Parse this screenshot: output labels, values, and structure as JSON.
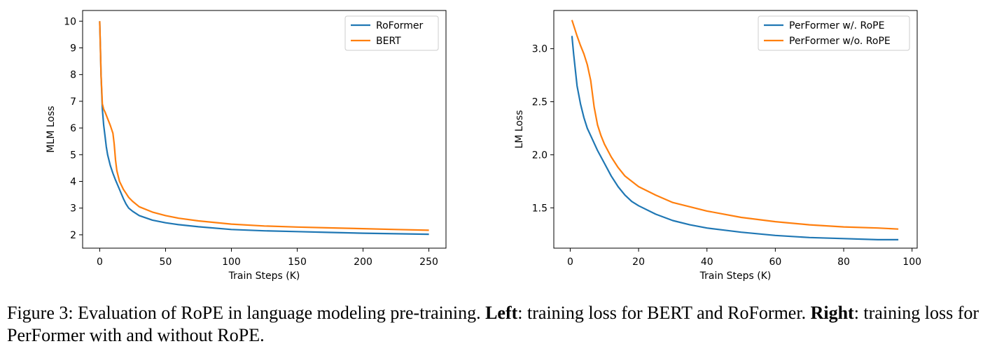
{
  "chart_data": [
    {
      "type": "line",
      "title": "",
      "xlabel": "Train Steps (K)",
      "ylabel": "MLM Loss",
      "xlim": [
        -13,
        263
      ],
      "ylim": [
        1.5,
        10.4
      ],
      "xticks": [
        0,
        50,
        100,
        150,
        200,
        250
      ],
      "yticks": [
        2,
        3,
        4,
        5,
        6,
        7,
        8,
        9,
        10
      ],
      "xtick_labels": [
        "0",
        "50",
        "100",
        "150",
        "200",
        "250"
      ],
      "ytick_labels": [
        "2",
        "3",
        "4",
        "5",
        "6",
        "7",
        "8",
        "9",
        "10"
      ],
      "legend_position": "top-right",
      "series": [
        {
          "name": "RoFormer",
          "color": "#1f77b4",
          "x": [
            0,
            0.5,
            1,
            2,
            3,
            4,
            5,
            6,
            8,
            10,
            12,
            15,
            18,
            20,
            22,
            25,
            30,
            40,
            50,
            60,
            75,
            100,
            125,
            150,
            175,
            200,
            225,
            250
          ],
          "y": [
            10.0,
            9.0,
            8.0,
            6.7,
            6.1,
            5.7,
            5.3,
            5.0,
            4.6,
            4.3,
            4.05,
            3.7,
            3.35,
            3.15,
            3.0,
            2.88,
            2.72,
            2.55,
            2.45,
            2.38,
            2.3,
            2.2,
            2.15,
            2.12,
            2.09,
            2.06,
            2.04,
            2.02
          ]
        },
        {
          "name": "BERT",
          "color": "#ff7f0e",
          "x": [
            0,
            0.5,
            1,
            2,
            3,
            4,
            6,
            8,
            10,
            11,
            12,
            13,
            15,
            18,
            20,
            22,
            25,
            30,
            40,
            50,
            60,
            75,
            100,
            125,
            150,
            175,
            200,
            225,
            250
          ],
          "y": [
            10.0,
            9.0,
            8.0,
            6.9,
            6.7,
            6.6,
            6.35,
            6.1,
            5.8,
            5.4,
            4.8,
            4.4,
            4.0,
            3.7,
            3.55,
            3.4,
            3.25,
            3.05,
            2.85,
            2.72,
            2.62,
            2.52,
            2.4,
            2.33,
            2.29,
            2.26,
            2.23,
            2.2,
            2.17
          ]
        }
      ]
    },
    {
      "type": "line",
      "title": "",
      "xlabel": "Train Steps (K)",
      "ylabel": "LM Loss",
      "xlim": [
        -4.8,
        101.5
      ],
      "ylim": [
        1.12,
        3.36
      ],
      "xticks": [
        0,
        20,
        40,
        60,
        80,
        100
      ],
      "yticks": [
        1.5,
        2.0,
        2.5,
        3.0
      ],
      "xtick_labels": [
        "0",
        "20",
        "40",
        "60",
        "80",
        "100"
      ],
      "ytick_labels": [
        "1.5",
        "2.0",
        "2.5",
        "3.0"
      ],
      "legend_position": "top-right",
      "series": [
        {
          "name": "PerFormer w/. RoPE",
          "color": "#1f77b4",
          "x": [
            0.5,
            1,
            2,
            3,
            4,
            5,
            6,
            8,
            10,
            12,
            14,
            16,
            18,
            20,
            25,
            30,
            35,
            40,
            45,
            50,
            60,
            70,
            80,
            90,
            96
          ],
          "y": [
            3.12,
            2.95,
            2.65,
            2.48,
            2.35,
            2.25,
            2.18,
            2.04,
            1.92,
            1.8,
            1.7,
            1.62,
            1.56,
            1.52,
            1.44,
            1.38,
            1.34,
            1.31,
            1.29,
            1.27,
            1.24,
            1.22,
            1.21,
            1.2,
            1.2
          ]
        },
        {
          "name": "PerFormer w/o. RoPE",
          "color": "#ff7f0e",
          "x": [
            0.5,
            1,
            2,
            3,
            4,
            5,
            6,
            7,
            8,
            9,
            10,
            12,
            14,
            16,
            18,
            20,
            25,
            30,
            35,
            40,
            45,
            50,
            60,
            70,
            80,
            90,
            96
          ],
          "y": [
            3.27,
            3.22,
            3.12,
            3.03,
            2.95,
            2.85,
            2.7,
            2.45,
            2.28,
            2.18,
            2.1,
            1.98,
            1.88,
            1.8,
            1.75,
            1.7,
            1.62,
            1.55,
            1.51,
            1.47,
            1.44,
            1.41,
            1.37,
            1.34,
            1.32,
            1.31,
            1.3
          ]
        }
      ]
    }
  ],
  "caption": {
    "prefix": "Figure 3: Evaluation of RoPE in language modeling pre-training.",
    "left_label": "Left",
    "left_text": ": training loss for BERT and RoFormer.",
    "right_label": "Right",
    "right_text": ": training loss for PerFormer with and without RoPE."
  }
}
